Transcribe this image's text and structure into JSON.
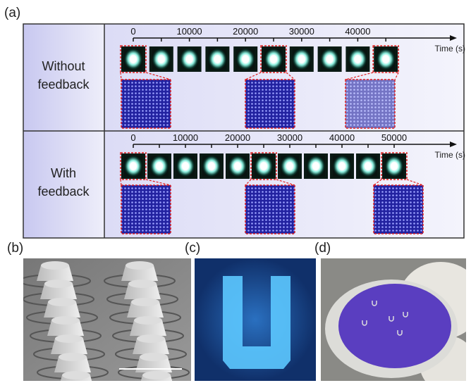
{
  "panel_labels": {
    "a": "(a)",
    "b": "(b)",
    "c": "(c)",
    "d": "(d)"
  },
  "rows": [
    {
      "label_line1": "Without",
      "label_line2": "feedback",
      "ticks": [
        "0",
        "10000",
        "20000",
        "30000",
        "40000"
      ],
      "n_thumbs": 10,
      "zoom_from": [
        0,
        5,
        9
      ],
      "axis_label": "Time (s)"
    },
    {
      "label_line1": "With",
      "label_line2": "feedback",
      "ticks": [
        "0",
        "10000",
        "20000",
        "30000",
        "40000",
        "50000"
      ],
      "n_thumbs": 11,
      "zoom_from": [
        0,
        5,
        10
      ],
      "axis_label": "Time (s)"
    }
  ],
  "colors": {
    "panel_bg": "#e4e4f8",
    "highlight": "#e02020",
    "array": "#3a3ae0"
  }
}
